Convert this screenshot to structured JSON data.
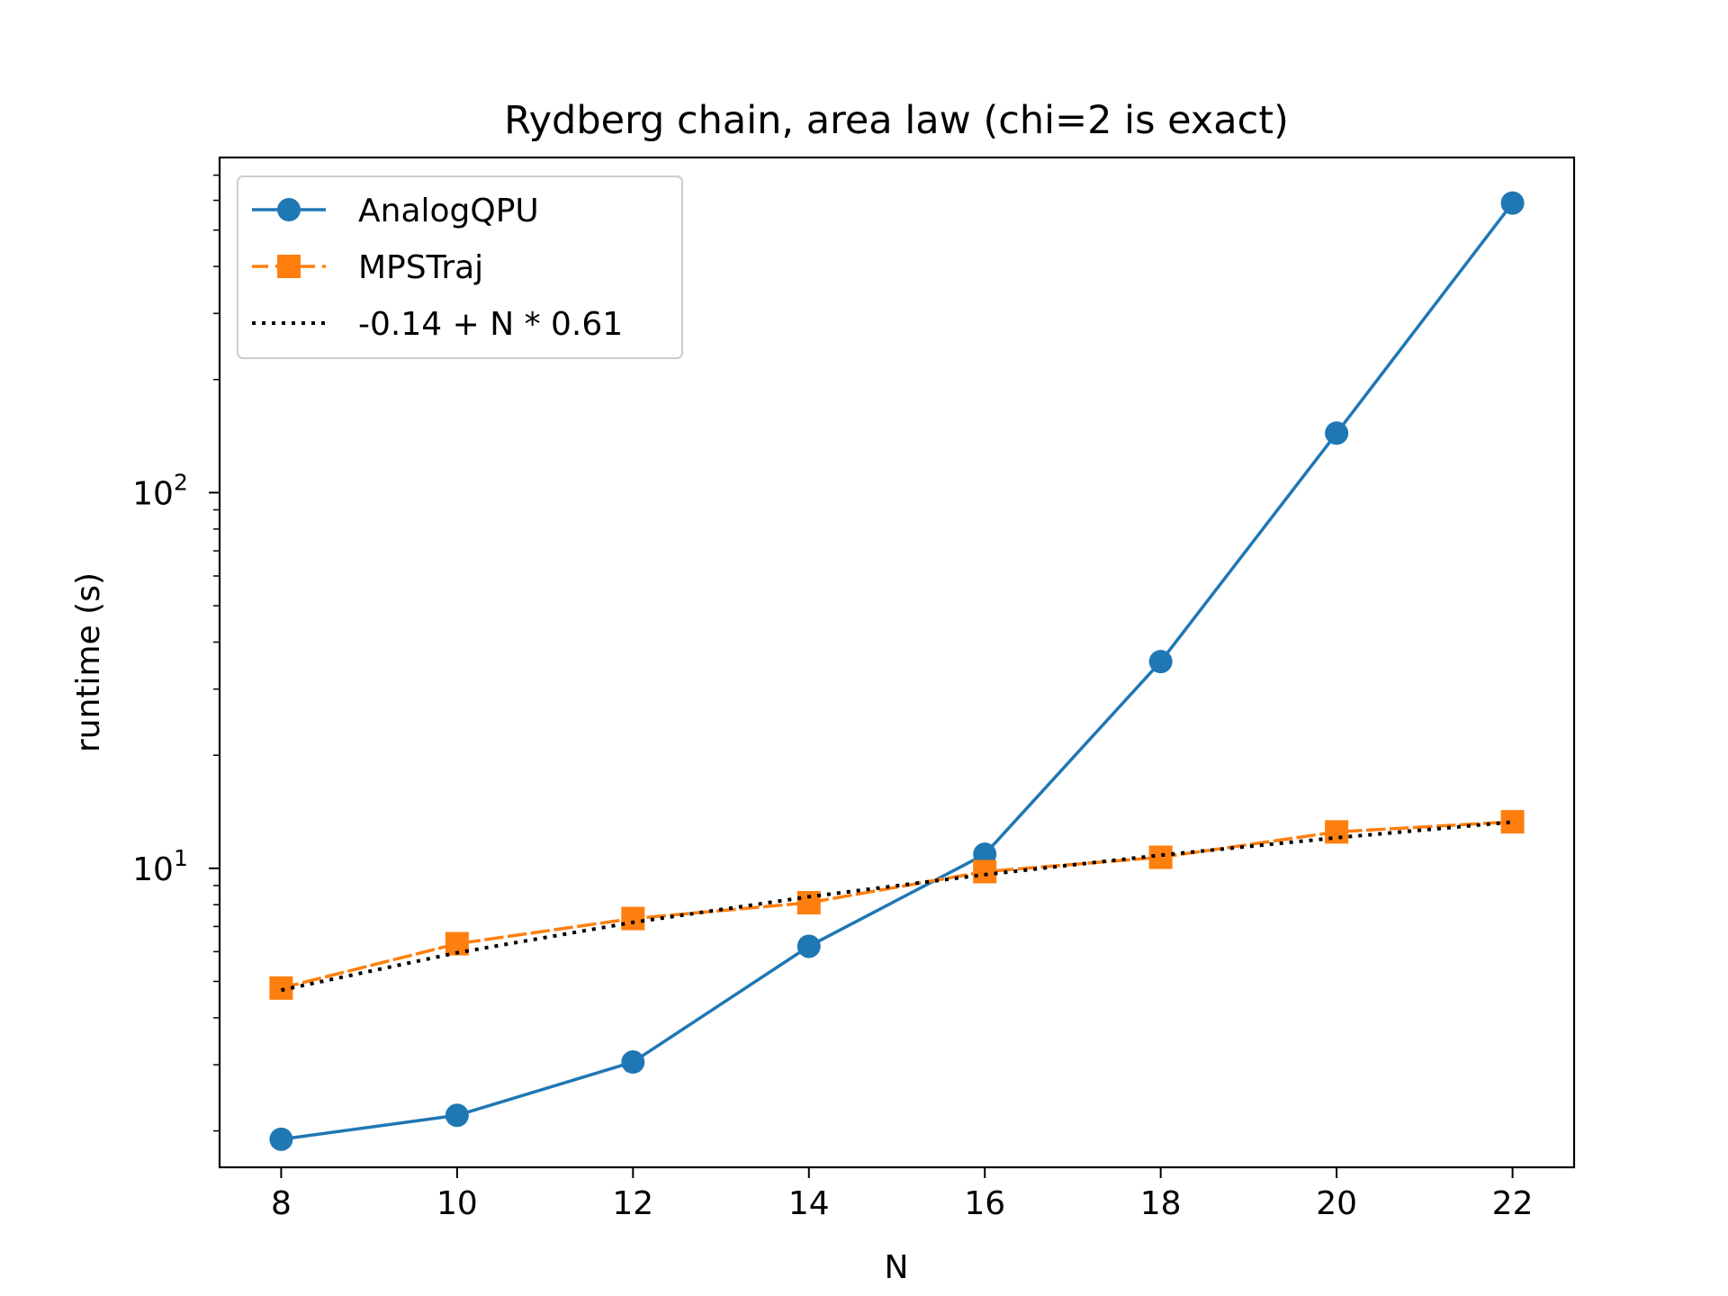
{
  "chart_data": {
    "type": "line",
    "title": "Rydberg chain, area law (chi=2 is exact)",
    "xlabel": "N",
    "ylabel": "runtime (s)",
    "yscale": "log",
    "xlim": [
      7.3,
      22.7
    ],
    "ylim": [
      1.6,
      780
    ],
    "xticks": [
      "8",
      "10",
      "12",
      "14",
      "16",
      "18",
      "20",
      "22"
    ],
    "yticks": [
      {
        "base": "10",
        "exp": "1",
        "value": 10
      },
      {
        "base": "10",
        "exp": "2",
        "value": 100
      }
    ],
    "legend_placement": "upper-left",
    "grid": false,
    "x": [
      8,
      10,
      12,
      14,
      16,
      18,
      20,
      22
    ],
    "series": [
      {
        "name": "AnalogQPU",
        "values": [
          1.9,
          2.2,
          3.05,
          6.2,
          10.9,
          35.5,
          144,
          590
        ],
        "color": "#1f77b4",
        "marker": "circle",
        "line": "solid"
      },
      {
        "name": "MPSTraj",
        "values": [
          4.8,
          6.3,
          7.35,
          8.1,
          9.8,
          10.7,
          12.5,
          13.3
        ],
        "color": "#ff7f0e",
        "marker": "square",
        "line": "dashed"
      },
      {
        "name": "-0.14 + N * 0.61",
        "values": [
          4.74,
          5.96,
          7.18,
          8.4,
          9.62,
          10.84,
          12.06,
          13.28
        ],
        "color": "#000000",
        "marker": "none",
        "line": "dotted"
      }
    ]
  }
}
